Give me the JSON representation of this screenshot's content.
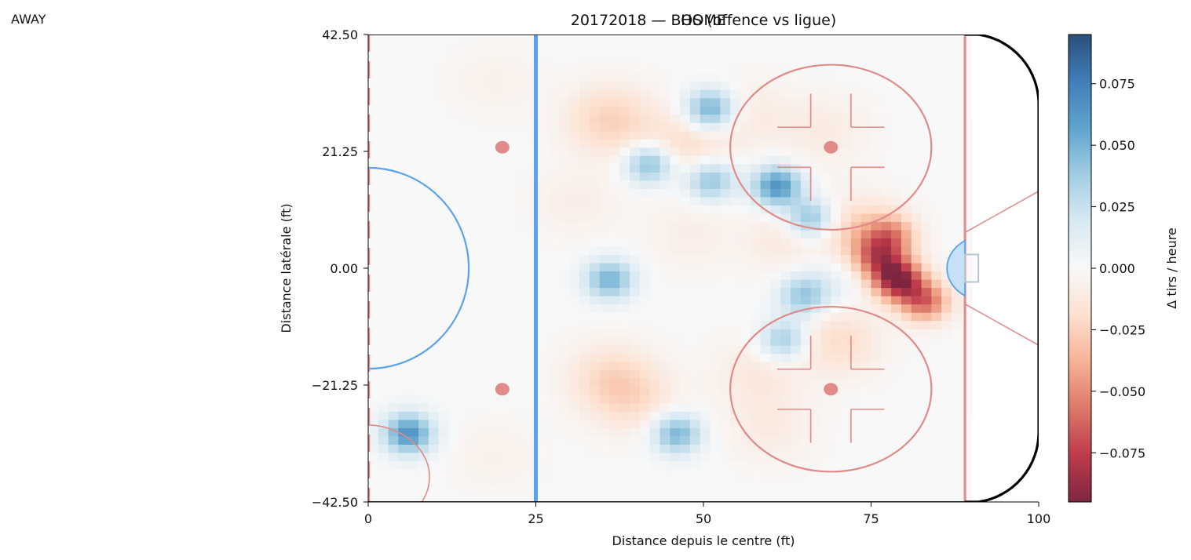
{
  "panel_label": "AWAY",
  "chart_data": {
    "type": "heatmap",
    "title": "20172018 — BOS (offence vs ligue)",
    "overlay_title": "HOME",
    "xlabel": "Distance depuis le centre (ft)",
    "ylabel": "Distance latérale (ft)",
    "xlim": [
      0,
      100
    ],
    "ylim": [
      -42.5,
      42.5
    ],
    "x_ticks": [
      0,
      25,
      50,
      75,
      100
    ],
    "y_ticks": [
      -42.5,
      -21.25,
      0,
      21.25,
      42.5
    ],
    "y_tick_labels": [
      "−42.50",
      "−21.25",
      "0.00",
      "21.25",
      "42.50"
    ],
    "colorbar": {
      "label": "Δ tirs / heure",
      "range": [
        -0.095,
        0.095
      ],
      "ticks": [
        -0.075,
        -0.05,
        -0.025,
        0,
        0.025,
        0.05,
        0.075
      ],
      "tick_labels": [
        "−0.075",
        "−0.050",
        "−0.025",
        "0.000",
        "0.025",
        "0.050",
        "0.075"
      ],
      "colormap": "RdBu"
    },
    "hotspots": [
      {
        "x": 6,
        "y": -30,
        "value": 0.065
      },
      {
        "x": 36,
        "y": -2,
        "value": 0.05
      },
      {
        "x": 42,
        "y": 19,
        "value": 0.05
      },
      {
        "x": 51,
        "y": 29,
        "value": 0.055
      },
      {
        "x": 51,
        "y": 16,
        "value": 0.045
      },
      {
        "x": 61,
        "y": 15,
        "value": 0.065
      },
      {
        "x": 66,
        "y": 9,
        "value": 0.05
      },
      {
        "x": 65,
        "y": -5,
        "value": 0.04
      },
      {
        "x": 62,
        "y": -13,
        "value": 0.04
      },
      {
        "x": 46,
        "y": -30,
        "value": 0.05
      },
      {
        "x": 69,
        "y": 0,
        "value": 0.015
      },
      {
        "x": 79,
        "y": -2,
        "value": -0.09
      },
      {
        "x": 83,
        "y": -6,
        "value": -0.06
      },
      {
        "x": 76,
        "y": 2,
        "value": -0.05
      },
      {
        "x": 78,
        "y": 6,
        "value": -0.04
      },
      {
        "x": 73,
        "y": 6,
        "value": -0.03
      },
      {
        "x": 70,
        "y": -13,
        "value": -0.02
      },
      {
        "x": 36,
        "y": 27,
        "value": -0.025
      },
      {
        "x": 47,
        "y": 22,
        "value": -0.02
      },
      {
        "x": 36,
        "y": -20,
        "value": -0.02
      },
      {
        "x": 40,
        "y": -24,
        "value": -0.015
      },
      {
        "x": 58,
        "y": -19,
        "value": -0.012
      },
      {
        "x": 63,
        "y": 5,
        "value": -0.015
      },
      {
        "x": 57,
        "y": 28,
        "value": -0.01
      },
      {
        "x": 68,
        "y": 25,
        "value": -0.01
      },
      {
        "x": 60,
        "y": -29,
        "value": -0.01
      },
      {
        "x": 48,
        "y": 6,
        "value": -0.008
      },
      {
        "x": 31,
        "y": 12,
        "value": -0.008
      },
      {
        "x": 19,
        "y": 34,
        "value": -0.006
      },
      {
        "x": 19,
        "y": -34,
        "value": -0.006
      }
    ],
    "rink": {
      "blue_line_x": 25,
      "goal_line_x": 89,
      "center_line_x": 0,
      "faceoff_circles": [
        {
          "x": 69,
          "y": 22,
          "r": 15
        },
        {
          "x": 69,
          "y": -22,
          "r": 15
        }
      ],
      "faceoff_dots": [
        {
          "x": 20,
          "y": 22
        },
        {
          "x": 20,
          "y": -22
        },
        {
          "x": 69,
          "y": 22
        },
        {
          "x": 69,
          "y": -22
        }
      ],
      "center_circle_r": 15,
      "crease_r": 6,
      "colors": {
        "blue_line": "#5aa2ee",
        "red_line": "#e08a8a",
        "crease_fill": "#c6e0f7",
        "board": "#000000"
      }
    }
  }
}
